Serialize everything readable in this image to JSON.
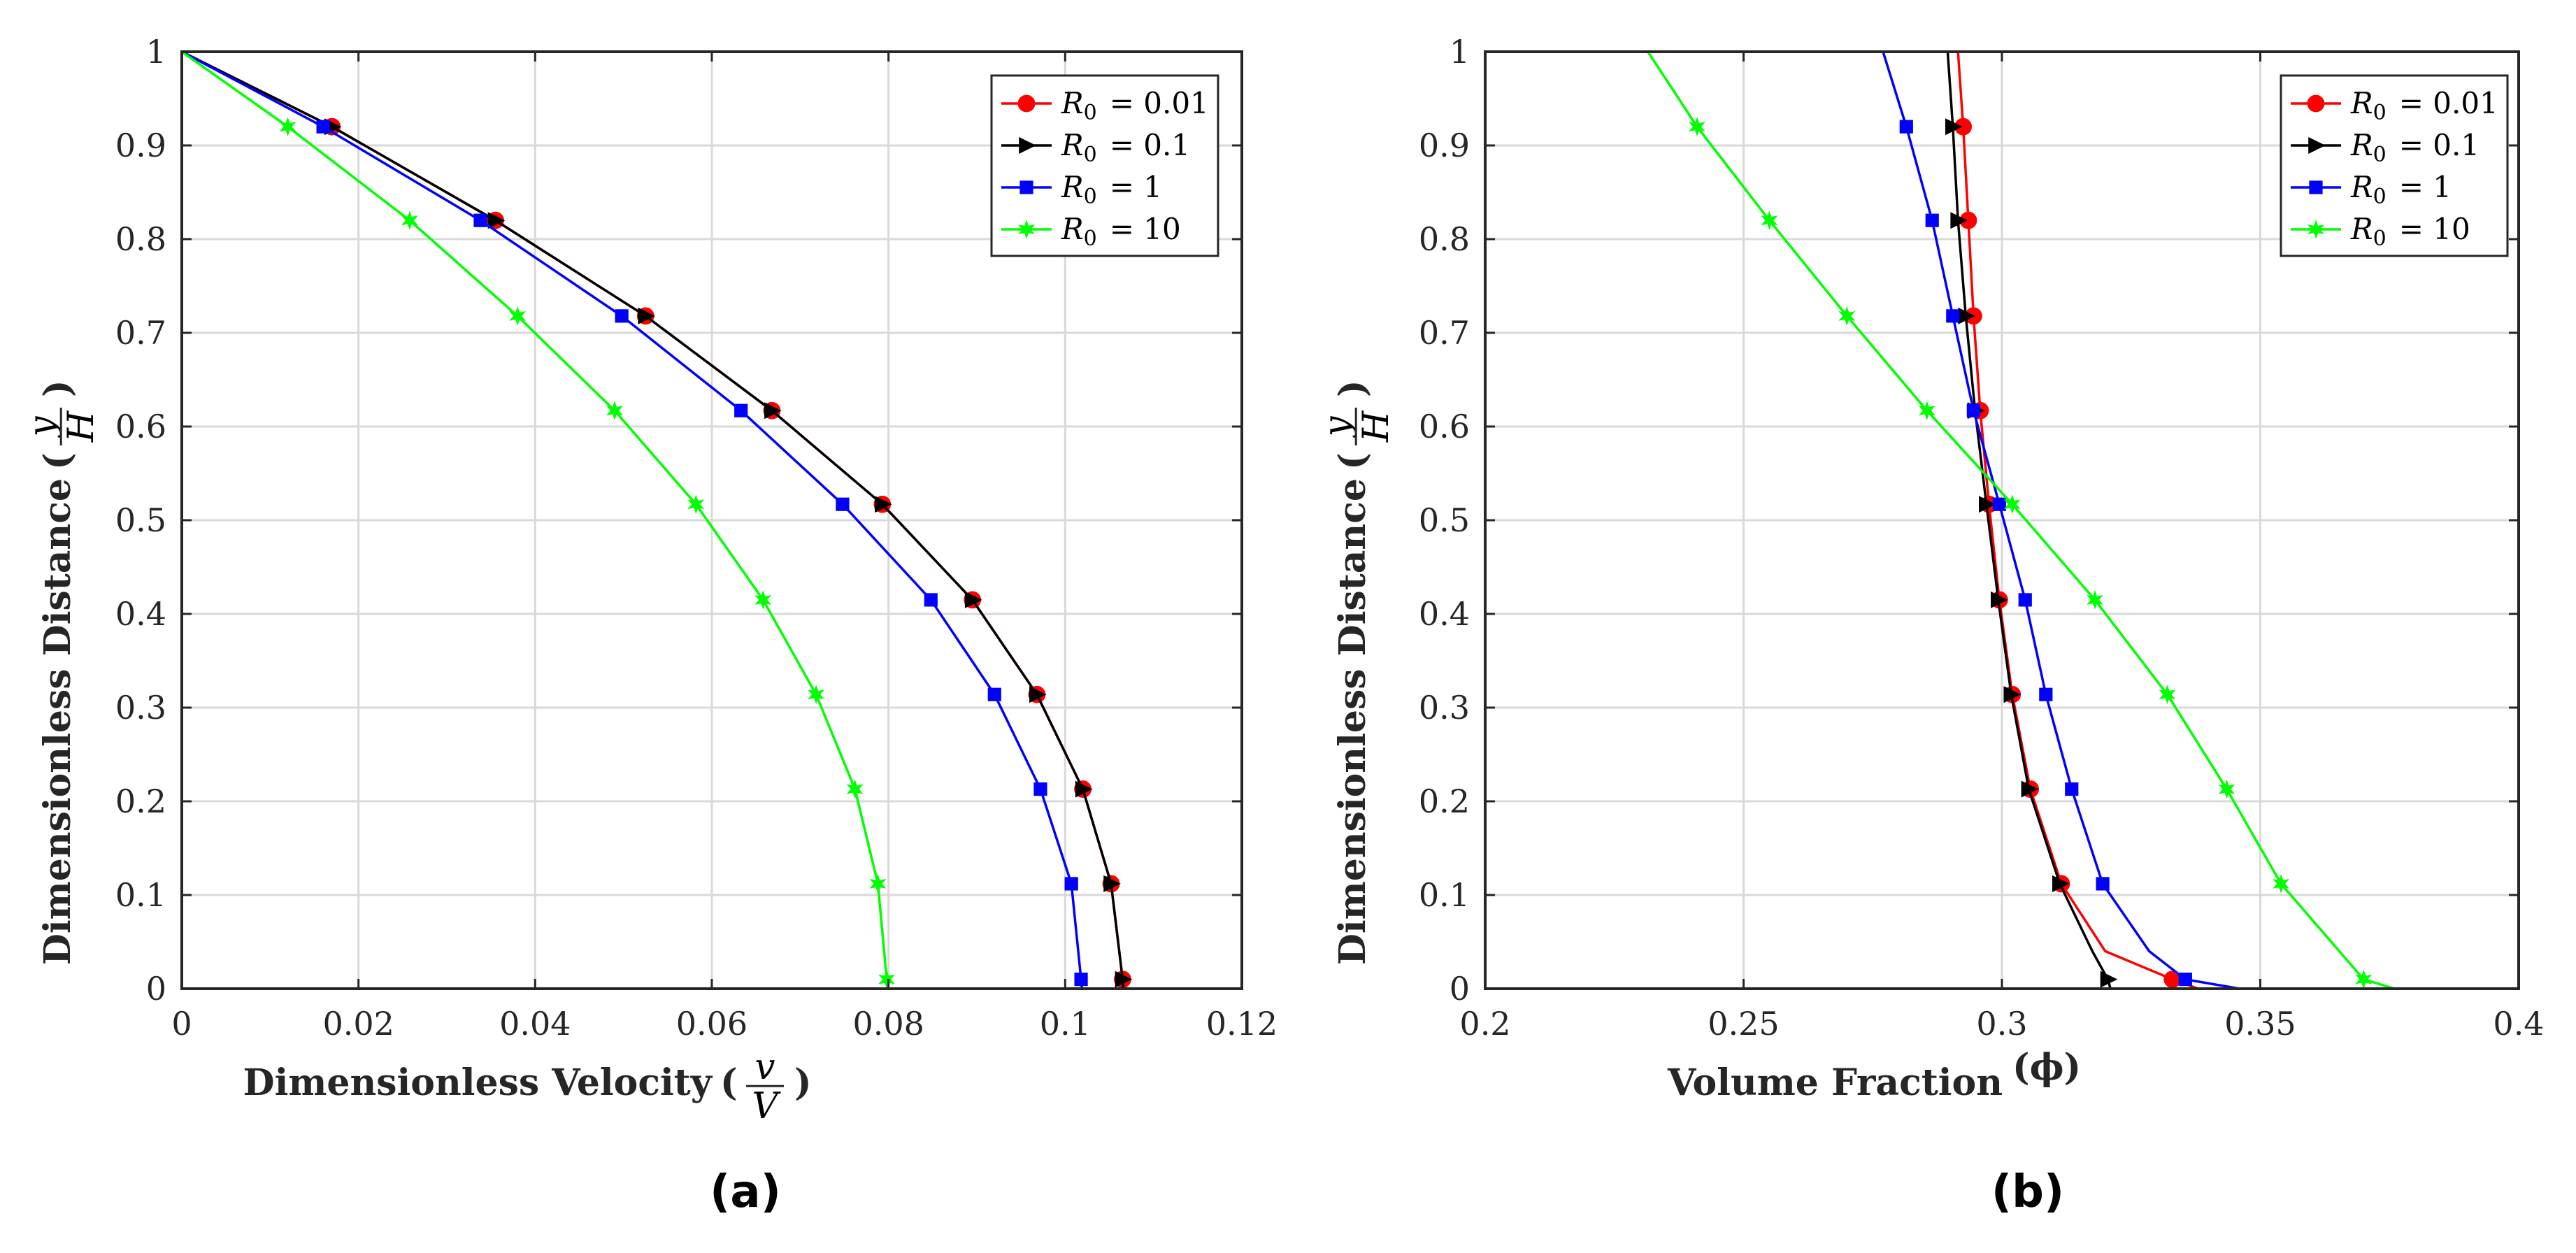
{
  "chart_data": [
    {
      "type": "line",
      "panel_label": "(a)",
      "xlabel": "Dimensionless Velocity",
      "xlabel_math": {
        "numerator": "v",
        "denominator": "V"
      },
      "ylabel": "Dimensionless Distance",
      "ylabel_math": {
        "numerator": "y",
        "denominator": "H"
      },
      "xlim": [
        0,
        0.12
      ],
      "ylim": [
        0,
        1
      ],
      "xticks": [
        "0",
        "0.02",
        "0.04",
        "0.06",
        "0.08",
        "0.1",
        "0.12"
      ],
      "yticks": [
        "0",
        "0.1",
        "0.2",
        "0.3",
        "0.4",
        "0.5",
        "0.6",
        "0.7",
        "0.8",
        "0.9",
        "1"
      ],
      "grid": true,
      "legend_position": "top-right",
      "series": [
        {
          "name": "R_0 = 0.01",
          "legend_sym": "R",
          "legend_sub": "0",
          "legend_val": "= 0.01",
          "color": "#ff0000",
          "marker": "circle",
          "line": [
            [
              0,
              1
            ],
            [
              0.017,
              0.92
            ],
            [
              0.0355,
              0.82
            ],
            [
              0.0525,
              0.718
            ],
            [
              0.0668,
              0.617
            ],
            [
              0.0793,
              0.517
            ],
            [
              0.0895,
              0.415
            ],
            [
              0.0968,
              0.314
            ],
            [
              0.102,
              0.213
            ],
            [
              0.1052,
              0.112
            ],
            [
              0.1065,
              0.01
            ],
            [
              0.1066,
              0
            ]
          ],
          "markers": [
            [
              0.017,
              0.92
            ],
            [
              0.0355,
              0.82
            ],
            [
              0.0525,
              0.718
            ],
            [
              0.0668,
              0.617
            ],
            [
              0.0793,
              0.517
            ],
            [
              0.0895,
              0.415
            ],
            [
              0.0968,
              0.314
            ],
            [
              0.102,
              0.213
            ],
            [
              0.1052,
              0.112
            ],
            [
              0.1065,
              0.01
            ]
          ]
        },
        {
          "name": "R_0 = 0.1",
          "legend_sym": "R",
          "legend_sub": "0",
          "legend_val": "= 0.1",
          "color": "#000000",
          "marker": "triangle-right",
          "line": [
            [
              0,
              1
            ],
            [
              0.017,
              0.92
            ],
            [
              0.0355,
              0.82
            ],
            [
              0.0525,
              0.718
            ],
            [
              0.0668,
              0.617
            ],
            [
              0.0793,
              0.517
            ],
            [
              0.0895,
              0.415
            ],
            [
              0.0968,
              0.314
            ],
            [
              0.102,
              0.213
            ],
            [
              0.1052,
              0.112
            ],
            [
              0.1065,
              0.01
            ],
            [
              0.1066,
              0
            ]
          ],
          "markers": [
            [
              0.017,
              0.92
            ],
            [
              0.0355,
              0.82
            ],
            [
              0.0525,
              0.718
            ],
            [
              0.0668,
              0.617
            ],
            [
              0.0793,
              0.517
            ],
            [
              0.0895,
              0.415
            ],
            [
              0.0968,
              0.314
            ],
            [
              0.102,
              0.213
            ],
            [
              0.1052,
              0.112
            ],
            [
              0.1065,
              0.01
            ]
          ]
        },
        {
          "name": "R_0 = 1",
          "legend_sym": "R",
          "legend_sub": "0",
          "legend_val": "= 1",
          "color": "#0000ff",
          "marker": "square",
          "line": [
            [
              0,
              1
            ],
            [
              0.016,
              0.92
            ],
            [
              0.0338,
              0.82
            ],
            [
              0.0498,
              0.718
            ],
            [
              0.0633,
              0.617
            ],
            [
              0.0748,
              0.517
            ],
            [
              0.0848,
              0.415
            ],
            [
              0.092,
              0.314
            ],
            [
              0.0972,
              0.213
            ],
            [
              0.1007,
              0.112
            ],
            [
              0.1018,
              0.01
            ],
            [
              0.1019,
              0
            ]
          ],
          "markers": [
            [
              0.016,
              0.92
            ],
            [
              0.0338,
              0.82
            ],
            [
              0.0498,
              0.718
            ],
            [
              0.0633,
              0.617
            ],
            [
              0.0748,
              0.517
            ],
            [
              0.0848,
              0.415
            ],
            [
              0.092,
              0.314
            ],
            [
              0.0972,
              0.213
            ],
            [
              0.1007,
              0.112
            ],
            [
              0.1018,
              0.01
            ]
          ]
        },
        {
          "name": "R_0 = 10",
          "legend_sym": "R",
          "legend_sub": "0",
          "legend_val": "= 10",
          "color": "#00ff00",
          "marker": "star",
          "line": [
            [
              0,
              1
            ],
            [
              0.012,
              0.92
            ],
            [
              0.0258,
              0.82
            ],
            [
              0.038,
              0.718
            ],
            [
              0.049,
              0.617
            ],
            [
              0.0582,
              0.517
            ],
            [
              0.0658,
              0.415
            ],
            [
              0.0718,
              0.314
            ],
            [
              0.0762,
              0.213
            ],
            [
              0.0788,
              0.112
            ],
            [
              0.0798,
              0.01
            ],
            [
              0.0799,
              0
            ]
          ],
          "markers": [
            [
              0.012,
              0.92
            ],
            [
              0.0258,
              0.82
            ],
            [
              0.038,
              0.718
            ],
            [
              0.049,
              0.617
            ],
            [
              0.0582,
              0.517
            ],
            [
              0.0658,
              0.415
            ],
            [
              0.0718,
              0.314
            ],
            [
              0.0762,
              0.213
            ],
            [
              0.0788,
              0.112
            ],
            [
              0.0798,
              0.01
            ]
          ]
        }
      ]
    },
    {
      "type": "line",
      "panel_label": "(b)",
      "xlabel": "Volume Fraction",
      "xlabel_math": {
        "symbol": "ϕ"
      },
      "ylabel": "Dimensionless Distance",
      "ylabel_math": {
        "numerator": "y",
        "denominator": "H"
      },
      "xlim": [
        0.2,
        0.4
      ],
      "ylim": [
        0,
        1
      ],
      "xticks": [
        "0.2",
        "0.25",
        "0.3",
        "0.35",
        "0.4"
      ],
      "yticks": [
        "0",
        "0.1",
        "0.2",
        "0.3",
        "0.4",
        "0.5",
        "0.6",
        "0.7",
        "0.8",
        "0.9",
        "1"
      ],
      "grid": true,
      "legend_position": "top-right",
      "series": [
        {
          "name": "R_0 = 0.01",
          "legend_sym": "R",
          "legend_sub": "0",
          "legend_val": "= 0.01",
          "color": "#ff0000",
          "marker": "circle",
          "line": [
            [
              0.2915,
              1
            ],
            [
              0.2925,
              0.92
            ],
            [
              0.2935,
              0.82
            ],
            [
              0.2945,
              0.718
            ],
            [
              0.2958,
              0.617
            ],
            [
              0.2975,
              0.517
            ],
            [
              0.2995,
              0.415
            ],
            [
              0.302,
              0.314
            ],
            [
              0.3055,
              0.213
            ],
            [
              0.3115,
              0.112
            ],
            [
              0.32,
              0.04
            ],
            [
              0.333,
              0.01
            ],
            [
              0.338,
              0
            ]
          ],
          "markers": [
            [
              0.2925,
              0.92
            ],
            [
              0.2935,
              0.82
            ],
            [
              0.2945,
              0.718
            ],
            [
              0.2958,
              0.617
            ],
            [
              0.2975,
              0.517
            ],
            [
              0.2995,
              0.415
            ],
            [
              0.302,
              0.314
            ],
            [
              0.3055,
              0.213
            ],
            [
              0.3115,
              0.112
            ],
            [
              0.333,
              0.01
            ]
          ]
        },
        {
          "name": "R_0 = 0.1",
          "legend_sym": "R",
          "legend_sub": "0",
          "legend_val": "= 0.1",
          "color": "#000000",
          "marker": "triangle-right",
          "line": [
            [
              0.2895,
              1
            ],
            [
              0.2905,
              0.92
            ],
            [
              0.2915,
              0.82
            ],
            [
              0.293,
              0.718
            ],
            [
              0.2948,
              0.617
            ],
            [
              0.297,
              0.517
            ],
            [
              0.2993,
              0.415
            ],
            [
              0.3018,
              0.314
            ],
            [
              0.3052,
              0.213
            ],
            [
              0.3112,
              0.112
            ],
            [
              0.3175,
              0.04
            ],
            [
              0.3205,
              0.01
            ],
            [
              0.321,
              0
            ]
          ],
          "markers": [
            [
              0.2905,
              0.92
            ],
            [
              0.2915,
              0.82
            ],
            [
              0.293,
              0.718
            ],
            [
              0.2948,
              0.617
            ],
            [
              0.297,
              0.517
            ],
            [
              0.2993,
              0.415
            ],
            [
              0.3018,
              0.314
            ],
            [
              0.3052,
              0.213
            ],
            [
              0.3112,
              0.112
            ],
            [
              0.3205,
              0.01
            ]
          ]
        },
        {
          "name": "R_0 = 1",
          "legend_sym": "R",
          "legend_sub": "0",
          "legend_val": "= 1",
          "color": "#0000ff",
          "marker": "square",
          "line": [
            [
              0.277,
              1
            ],
            [
              0.2815,
              0.92
            ],
            [
              0.2865,
              0.82
            ],
            [
              0.2905,
              0.718
            ],
            [
              0.2945,
              0.617
            ],
            [
              0.2995,
              0.517
            ],
            [
              0.3045,
              0.415
            ],
            [
              0.3085,
              0.314
            ],
            [
              0.3135,
              0.213
            ],
            [
              0.3195,
              0.112
            ],
            [
              0.3285,
              0.04
            ],
            [
              0.3355,
              0.01
            ],
            [
              0.346,
              0
            ]
          ],
          "markers": [
            [
              0.2815,
              0.92
            ],
            [
              0.2865,
              0.82
            ],
            [
              0.2905,
              0.718
            ],
            [
              0.2945,
              0.617
            ],
            [
              0.2995,
              0.517
            ],
            [
              0.3045,
              0.415
            ],
            [
              0.3085,
              0.314
            ],
            [
              0.3135,
              0.213
            ],
            [
              0.3195,
              0.112
            ],
            [
              0.3355,
              0.01
            ]
          ]
        },
        {
          "name": "R_0 = 10",
          "legend_sym": "R",
          "legend_sub": "0",
          "legend_val": "= 10",
          "color": "#00ff00",
          "marker": "star",
          "line": [
            [
              0.2315,
              1
            ],
            [
              0.241,
              0.92
            ],
            [
              0.255,
              0.82
            ],
            [
              0.27,
              0.718
            ],
            [
              0.2855,
              0.617
            ],
            [
              0.302,
              0.517
            ],
            [
              0.318,
              0.415
            ],
            [
              0.332,
              0.314
            ],
            [
              0.3435,
              0.213
            ],
            [
              0.354,
              0.112
            ],
            [
              0.37,
              0.01
            ],
            [
              0.376,
              0
            ]
          ],
          "markers": [
            [
              0.241,
              0.92
            ],
            [
              0.255,
              0.82
            ],
            [
              0.27,
              0.718
            ],
            [
              0.2855,
              0.617
            ],
            [
              0.302,
              0.517
            ],
            [
              0.318,
              0.415
            ],
            [
              0.332,
              0.314
            ],
            [
              0.3435,
              0.213
            ],
            [
              0.354,
              0.112
            ],
            [
              0.37,
              0.01
            ]
          ]
        }
      ]
    }
  ]
}
